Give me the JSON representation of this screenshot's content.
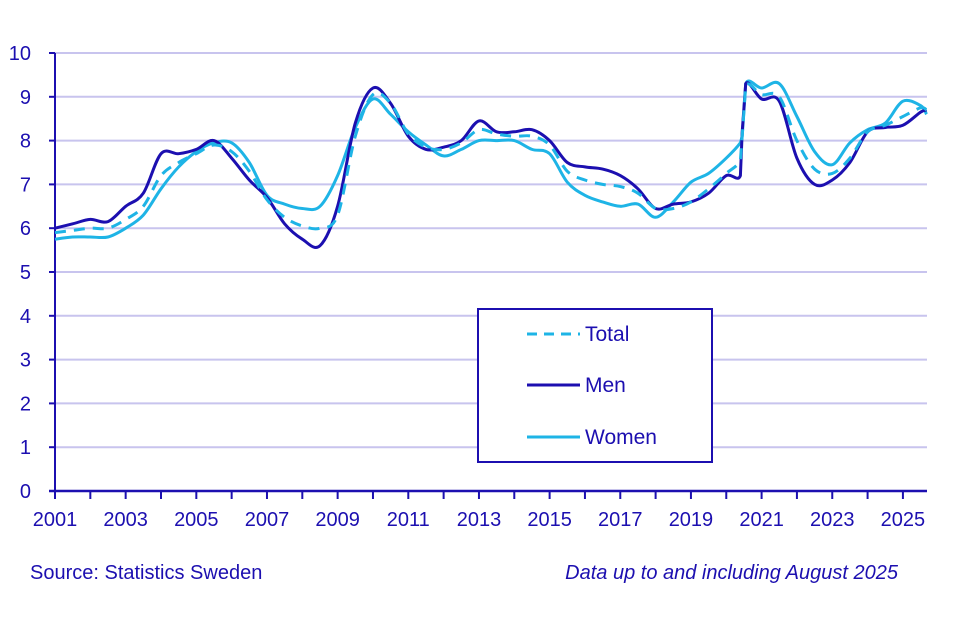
{
  "chart_data": {
    "type": "line",
    "title": "",
    "xlabel": "",
    "ylabel": "",
    "ylim": [
      0,
      10
    ],
    "xlim": [
      2001,
      2025.67
    ],
    "yticks": [
      "0",
      "1",
      "2",
      "3",
      "4",
      "5",
      "6",
      "7",
      "8",
      "9",
      "10"
    ],
    "xticks": [
      "2001",
      "2003",
      "2005",
      "2007",
      "2009",
      "2011",
      "2013",
      "2015",
      "2017",
      "2019",
      "2021",
      "2023",
      "2025"
    ],
    "grid": true,
    "legend": {
      "position": "center-right",
      "entries": [
        "Total",
        "Men",
        "Women"
      ]
    },
    "colors": {
      "total": "#1eb4e6",
      "men": "#1c0fb0",
      "women": "#1eb4e6",
      "grid": "#c8c4ee",
      "axis": "#1c0fb0"
    },
    "series": [
      {
        "name": "Total",
        "style": "dashed",
        "x": [
          2001,
          2001.5,
          2002,
          2002.5,
          2003,
          2003.5,
          2004,
          2004.5,
          2005,
          2005.5,
          2006,
          2006.5,
          2007,
          2007.5,
          2008,
          2008.5,
          2009,
          2009.5,
          2010,
          2010.5,
          2011,
          2011.5,
          2012,
          2012.5,
          2013,
          2013.5,
          2014,
          2014.5,
          2015,
          2015.5,
          2016,
          2016.5,
          2017,
          2017.5,
          2018,
          2018.5,
          2019,
          2019.5,
          2020,
          2020.4,
          2020.45,
          2020.55,
          2021,
          2021.5,
          2022,
          2022.5,
          2023,
          2023.5,
          2024,
          2024.5,
          2025,
          2025.5,
          2025.67
        ],
        "values": [
          5.9,
          5.95,
          6.0,
          6.0,
          6.2,
          6.5,
          7.2,
          7.5,
          7.7,
          7.9,
          7.75,
          7.3,
          6.65,
          6.25,
          6.05,
          6.0,
          6.3,
          8.1,
          9.05,
          8.85,
          8.15,
          7.85,
          7.8,
          7.95,
          8.25,
          8.15,
          8.1,
          8.1,
          7.9,
          7.3,
          7.1,
          7.0,
          6.95,
          6.8,
          6.45,
          6.45,
          6.6,
          6.9,
          7.25,
          7.55,
          8.1,
          9.25,
          9.05,
          9.0,
          8.0,
          7.35,
          7.25,
          7.6,
          8.2,
          8.35,
          8.55,
          8.75,
          8.7
        ]
      },
      {
        "name": "Men",
        "style": "solid",
        "x": [
          2001,
          2001.5,
          2002,
          2002.5,
          2003,
          2003.5,
          2004,
          2004.5,
          2005,
          2005.5,
          2006,
          2006.5,
          2007,
          2007.5,
          2008,
          2008.5,
          2009,
          2009.5,
          2010,
          2010.5,
          2011,
          2011.5,
          2012,
          2012.5,
          2013,
          2013.5,
          2014,
          2014.5,
          2015,
          2015.5,
          2016,
          2016.5,
          2017,
          2017.5,
          2018,
          2018.5,
          2019,
          2019.5,
          2020,
          2020.4,
          2020.45,
          2020.55,
          2021,
          2021.5,
          2022,
          2022.5,
          2023,
          2023.5,
          2024,
          2024.5,
          2025,
          2025.5,
          2025.67
        ],
        "values": [
          6.0,
          6.1,
          6.2,
          6.15,
          6.5,
          6.8,
          7.7,
          7.7,
          7.8,
          8.0,
          7.6,
          7.1,
          6.7,
          6.1,
          5.75,
          5.6,
          6.5,
          8.4,
          9.2,
          8.85,
          8.1,
          7.8,
          7.85,
          8.0,
          8.45,
          8.2,
          8.2,
          8.25,
          8.0,
          7.5,
          7.4,
          7.35,
          7.2,
          6.9,
          6.45,
          6.55,
          6.6,
          6.8,
          7.2,
          7.2,
          8.2,
          9.3,
          8.95,
          8.9,
          7.6,
          7.0,
          7.1,
          7.5,
          8.2,
          8.3,
          8.35,
          8.65,
          8.7
        ]
      },
      {
        "name": "Women",
        "style": "solid",
        "x": [
          2001,
          2001.5,
          2002,
          2002.5,
          2003,
          2003.5,
          2004,
          2004.5,
          2005,
          2005.5,
          2006,
          2006.5,
          2007,
          2007.5,
          2008,
          2008.5,
          2009,
          2009.5,
          2010,
          2010.5,
          2011,
          2011.5,
          2012,
          2012.5,
          2013,
          2013.5,
          2014,
          2014.5,
          2015,
          2015.5,
          2016,
          2016.5,
          2017,
          2017.5,
          2018,
          2018.5,
          2019,
          2019.5,
          2020,
          2020.4,
          2020.45,
          2020.55,
          2021,
          2021.5,
          2022,
          2022.5,
          2023,
          2023.5,
          2024,
          2024.5,
          2025,
          2025.5,
          2025.67
        ],
        "values": [
          5.75,
          5.8,
          5.8,
          5.8,
          6.0,
          6.3,
          6.9,
          7.4,
          7.75,
          7.95,
          7.95,
          7.5,
          6.75,
          6.55,
          6.45,
          6.5,
          7.2,
          8.3,
          8.95,
          8.6,
          8.2,
          7.9,
          7.65,
          7.8,
          8.0,
          8.0,
          8.0,
          7.8,
          7.7,
          7.05,
          6.75,
          6.6,
          6.5,
          6.55,
          6.25,
          6.6,
          7.05,
          7.25,
          7.6,
          7.95,
          8.1,
          9.3,
          9.2,
          9.3,
          8.55,
          7.75,
          7.45,
          7.95,
          8.25,
          8.4,
          8.9,
          8.8,
          8.6
        ]
      }
    ]
  },
  "footer": {
    "source": "Source: Statistics Sweden",
    "note": "Data up to and including August 2025"
  }
}
